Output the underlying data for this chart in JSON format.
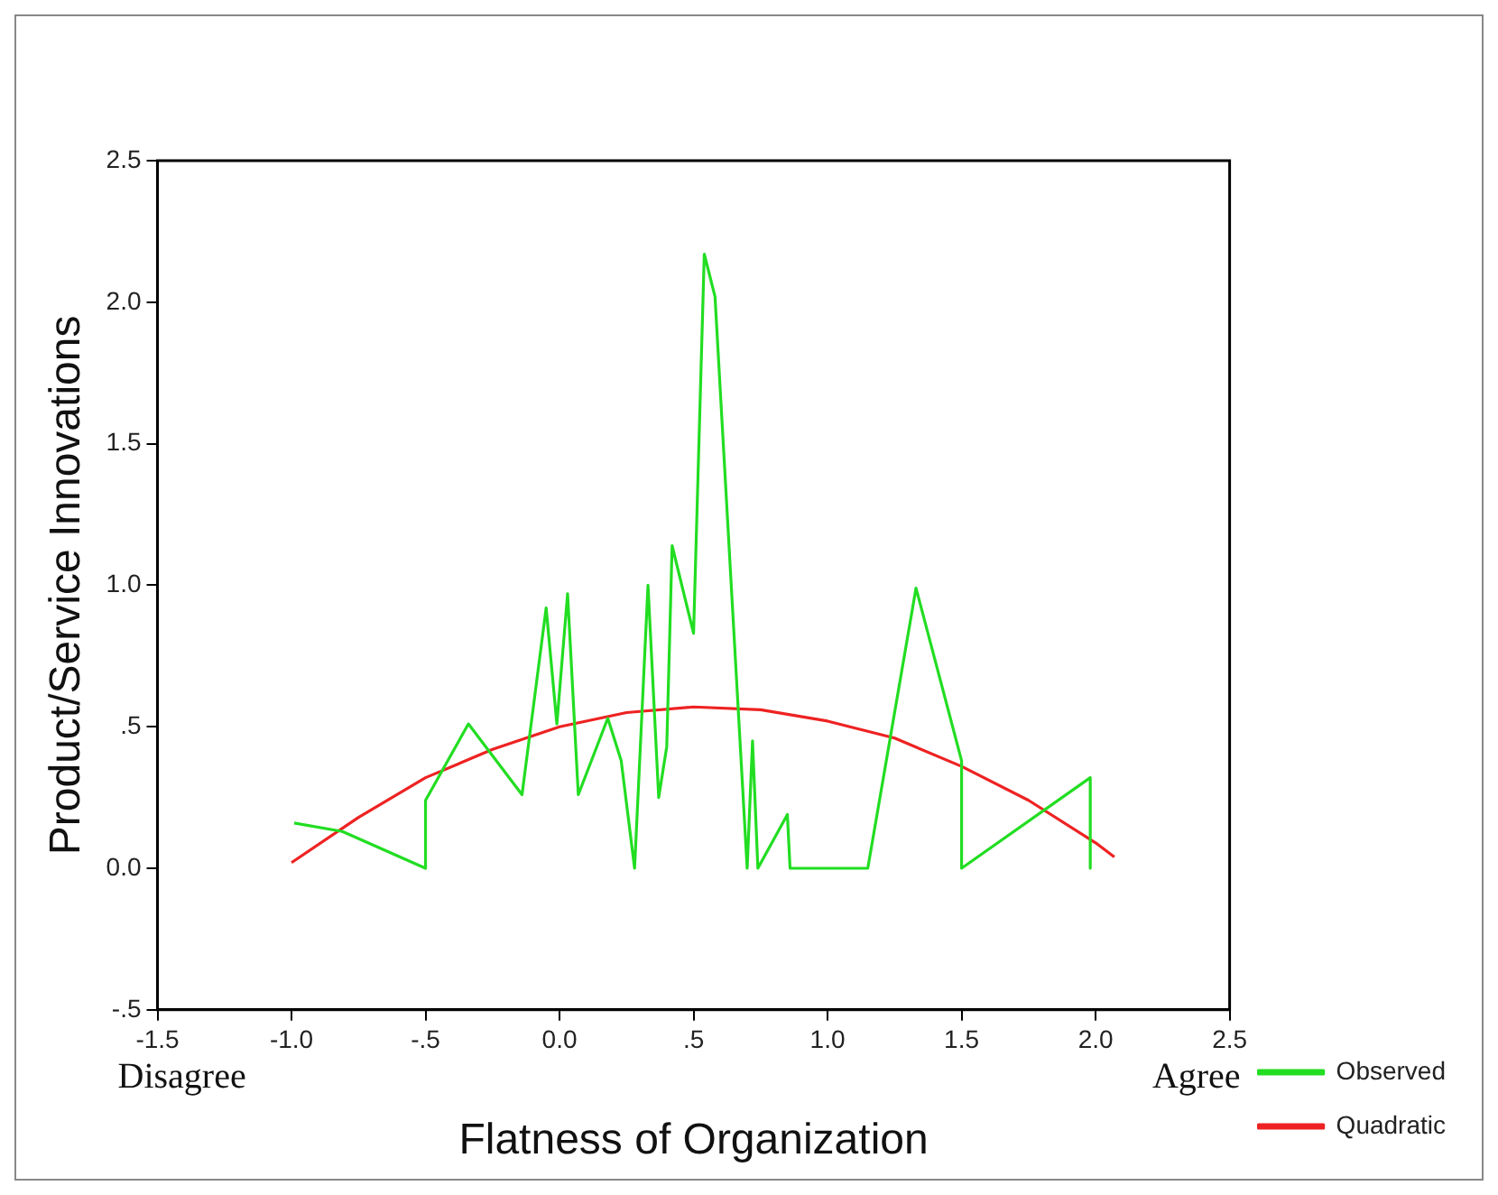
{
  "chart_data": {
    "type": "line",
    "xlabel": "Flatness of Organization",
    "ylabel": "Product/Service Innovations",
    "xlim": [
      -1.5,
      2.5
    ],
    "xticks": [
      {
        "value": -1.5,
        "label": "-1.5"
      },
      {
        "value": -1,
        "label": "-1.0"
      },
      {
        "value": -0.5,
        "label": "-.5"
      },
      {
        "value": 0,
        "label": "0.0"
      },
      {
        "value": 0.5,
        "label": ".5"
      },
      {
        "value": 1,
        "label": "1.0"
      },
      {
        "value": 1.5,
        "label": "1.5"
      },
      {
        "value": 2,
        "label": "2.0"
      },
      {
        "value": 2.5,
        "label": "2.5"
      }
    ],
    "ylim": [
      -0.5,
      2.5
    ],
    "yticks": [
      {
        "value": -0.5,
        "label": "-.5"
      },
      {
        "value": 0,
        "label": "0.0"
      },
      {
        "value": 0.5,
        "label": ".5"
      },
      {
        "value": 1,
        "label": "1.0"
      },
      {
        "value": 1.5,
        "label": "1.5"
      },
      {
        "value": 2,
        "label": "2.0"
      },
      {
        "value": 2.5,
        "label": "2.5"
      }
    ],
    "series": [
      {
        "name": "Observed",
        "color": "#22dd22",
        "x": [
          -0.99,
          -0.81,
          -0.5,
          -0.5,
          -0.34,
          -0.14,
          -0.05,
          -0.01,
          0.03,
          0.07,
          0.18,
          0.23,
          0.28,
          0.33,
          0.37,
          0.4,
          0.42,
          0.5,
          0.54,
          0.58,
          0.7,
          0.72,
          0.74,
          0.85,
          0.86,
          1.15,
          1.33,
          1.5,
          1.5,
          1.98,
          1.98
        ],
        "values": [
          0.16,
          0.13,
          0,
          0.24,
          0.51,
          0.26,
          0.92,
          0.51,
          0.97,
          0.26,
          0.53,
          0.38,
          0,
          1,
          0.25,
          0.43,
          1.14,
          0.83,
          2.17,
          2.02,
          0,
          0.45,
          0,
          0.19,
          0,
          0,
          0.99,
          0.38,
          0,
          0.32,
          0
        ]
      },
      {
        "name": "Quadratic",
        "color": "#ee2222",
        "x": [
          -1,
          -0.75,
          -0.5,
          -0.25,
          0,
          0.25,
          0.5,
          0.75,
          1,
          1.25,
          1.5,
          1.75,
          2,
          2.07
        ],
        "values": [
          0.02,
          0.18,
          0.32,
          0.42,
          0.5,
          0.55,
          0.57,
          0.56,
          0.52,
          0.46,
          0.36,
          0.24,
          0.09,
          0.04
        ]
      }
    ],
    "annotations": [
      "Disagree",
      "Agree"
    ],
    "grid": false,
    "legend": "right",
    "marker": "none",
    "line_style": "solid"
  }
}
